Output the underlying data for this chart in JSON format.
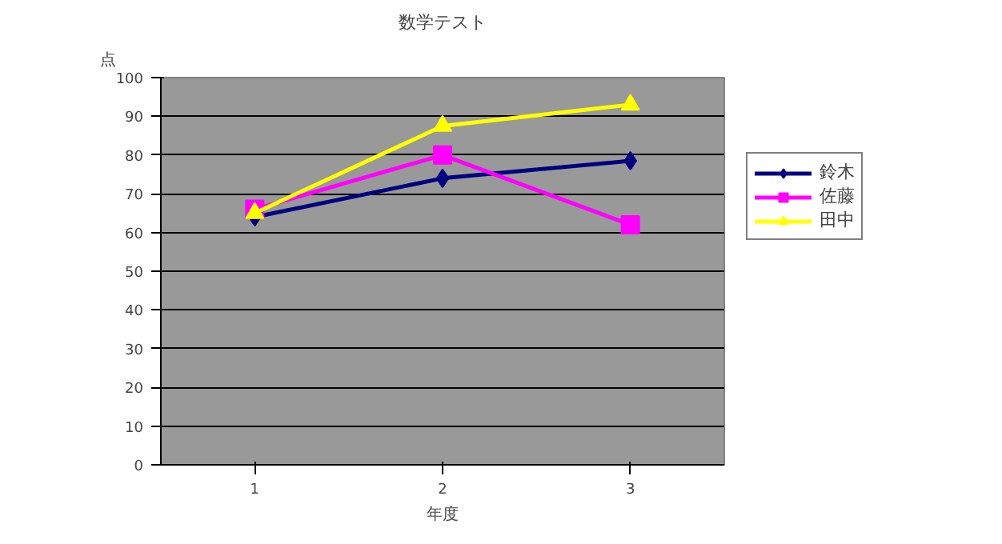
{
  "chart_data": {
    "type": "line",
    "title": "数学テスト",
    "xlabel": "年度",
    "ylabel": "点",
    "categories": [
      "1",
      "2",
      "3"
    ],
    "series": [
      {
        "name": "鈴木",
        "color": "#000080",
        "marker": "diamond",
        "values": [
          64,
          74,
          78.5
        ]
      },
      {
        "name": "佐藤",
        "color": "#ff00ff",
        "marker": "square",
        "values": [
          66,
          80,
          62
        ]
      },
      {
        "name": "田中",
        "color": "#ffff00",
        "marker": "triangle",
        "values": [
          65,
          87.5,
          93
        ]
      }
    ],
    "ylim": [
      0,
      100
    ],
    "yticks": [
      0,
      10,
      20,
      30,
      40,
      50,
      60,
      70,
      80,
      90,
      100
    ],
    "grid": "y",
    "legend": "right"
  }
}
